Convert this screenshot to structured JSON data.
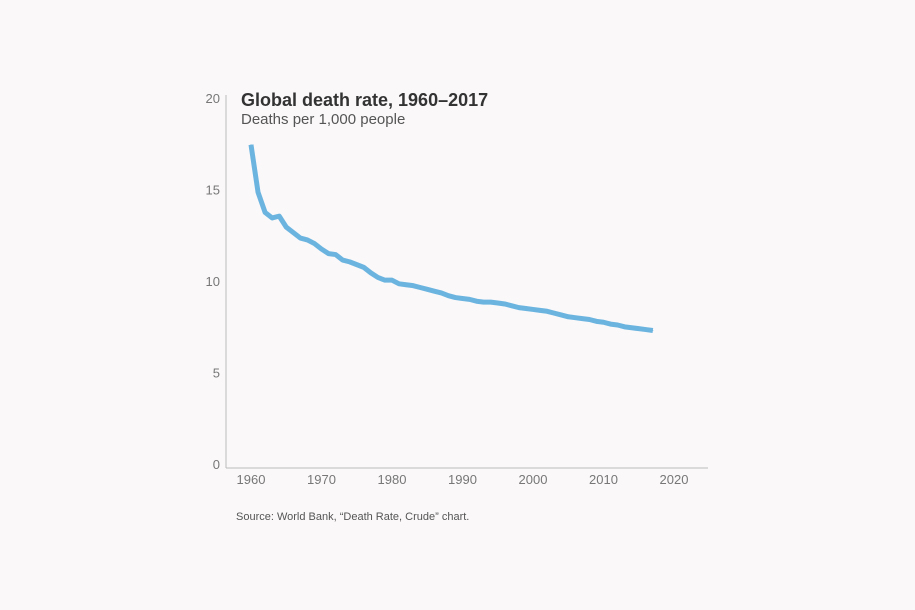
{
  "chart_data": {
    "type": "line",
    "title": "Global death rate, 1960–2017",
    "subtitle": "Deaths per 1,000 people",
    "source": "Source: World Bank, “Death Rate, Crude” chart.",
    "xlabel": "",
    "ylabel": "",
    "xlim": [
      1958,
      2025
    ],
    "ylim": [
      0,
      20
    ],
    "x_ticks": [
      "1960",
      "1970",
      "1980",
      "1990",
      "2000",
      "2010",
      "2020"
    ],
    "y_ticks": [
      "0",
      "5",
      "10",
      "15",
      "20"
    ],
    "grid": false,
    "series": [
      {
        "color": "#6cb4e0",
        "x": [
          1960,
          1961,
          1962,
          1963,
          1964,
          1965,
          1966,
          1967,
          1968,
          1969,
          1970,
          1971,
          1972,
          1973,
          1974,
          1975,
          1976,
          1977,
          1978,
          1979,
          1980,
          1981,
          1982,
          1983,
          1984,
          1985,
          1986,
          1987,
          1988,
          1989,
          1990,
          1991,
          1992,
          1993,
          1994,
          1995,
          1996,
          1997,
          1998,
          1999,
          2000,
          2001,
          2002,
          2003,
          2004,
          2005,
          2006,
          2007,
          2008,
          2009,
          2010,
          2011,
          2012,
          2013,
          2014,
          2015,
          2016,
          2017
        ],
        "values": [
          17.5,
          14.9,
          13.8,
          13.5,
          13.6,
          13.0,
          12.7,
          12.4,
          12.3,
          12.1,
          11.8,
          11.55,
          11.5,
          11.2,
          11.1,
          10.95,
          10.8,
          10.5,
          10.25,
          10.1,
          10.1,
          9.9,
          9.85,
          9.8,
          9.7,
          9.6,
          9.5,
          9.4,
          9.25,
          9.15,
          9.1,
          9.05,
          8.95,
          8.9,
          8.9,
          8.85,
          8.8,
          8.7,
          8.6,
          8.55,
          8.5,
          8.45,
          8.4,
          8.3,
          8.2,
          8.1,
          8.05,
          8.0,
          7.95,
          7.85,
          7.8,
          7.7,
          7.65,
          7.55,
          7.5,
          7.45,
          7.4,
          7.35
        ]
      }
    ],
    "axis_color": "#bbbbbb"
  }
}
